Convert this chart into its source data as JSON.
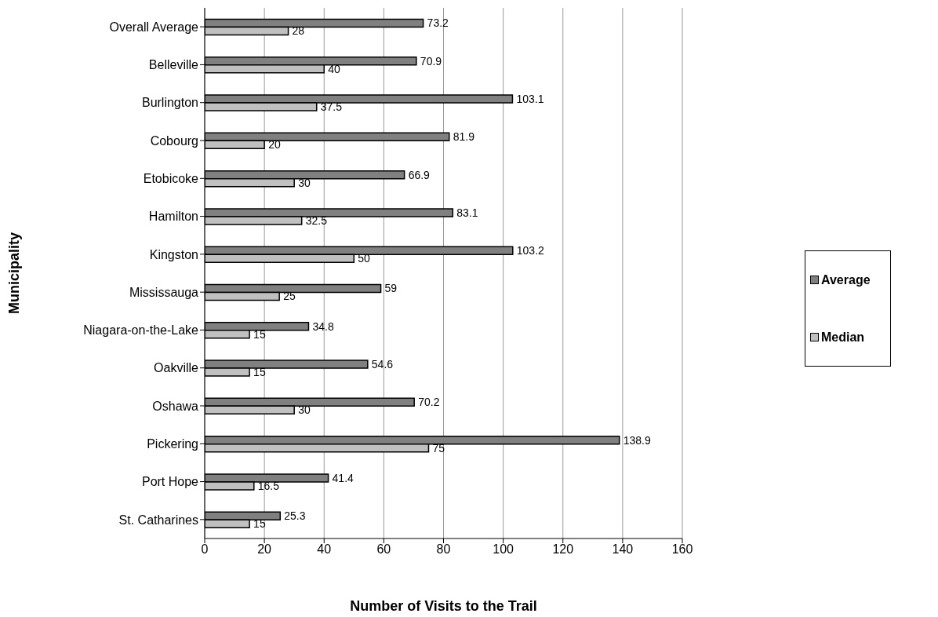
{
  "chart_data": {
    "type": "bar",
    "orientation": "horizontal",
    "xlabel": "Number of Visits to the Trail",
    "ylabel": "Municipality",
    "categories": [
      "Overall Average",
      "Belleville",
      "Burlington",
      "Cobourg",
      "Etobicoke",
      "Hamilton",
      "Kingston",
      "Mississauga",
      "Niagara-on-the-Lake",
      "Oakville",
      "Oshawa",
      "Pickering",
      "Port Hope",
      "St. Catharines"
    ],
    "series": [
      {
        "name": "Average",
        "color": "#808080",
        "values": [
          73.2,
          70.9,
          103.1,
          81.9,
          66.9,
          83.1,
          103.2,
          59,
          34.8,
          54.6,
          70.2,
          138.9,
          41.4,
          25.3
        ]
      },
      {
        "name": "Median",
        "color": "#c0c0c0",
        "values": [
          28,
          40,
          37.5,
          20,
          30,
          32.5,
          50,
          25,
          15,
          15,
          30,
          75,
          16.5,
          15
        ]
      }
    ],
    "xlim": [
      0,
      160
    ],
    "xticks": [
      0,
      20,
      40,
      60,
      80,
      100,
      120,
      140,
      160
    ],
    "grid": "x",
    "legend": "right",
    "data_labels": true
  }
}
